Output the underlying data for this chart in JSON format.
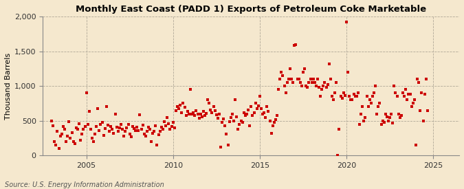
{
  "title": "Monthly East Coast (PADD 1) Exports of Petroleum Coke Marketable",
  "ylabel": "Thousand Barrels",
  "source": "Source: U.S. Energy Information Administration",
  "background_color": "#f5e8ce",
  "plot_background_color": "#f5e8ce",
  "marker_color": "#cc0000",
  "marker_size": 6,
  "xlim_start": 2002.5,
  "xlim_end": 2026.5,
  "ylim": [
    0,
    2000
  ],
  "yticks": [
    0,
    500,
    1000,
    1500,
    2000
  ],
  "xticks": [
    2005,
    2010,
    2015,
    2020,
    2025
  ],
  "data": [
    [
      2003.0,
      500
    ],
    [
      2003.08,
      430
    ],
    [
      2003.17,
      200
    ],
    [
      2003.25,
      150
    ],
    [
      2003.33,
      350
    ],
    [
      2003.42,
      100
    ],
    [
      2003.5,
      280
    ],
    [
      2003.58,
      310
    ],
    [
      2003.67,
      420
    ],
    [
      2003.75,
      380
    ],
    [
      2003.83,
      200
    ],
    [
      2003.92,
      280
    ],
    [
      2004.0,
      490
    ],
    [
      2004.08,
      250
    ],
    [
      2004.17,
      330
    ],
    [
      2004.25,
      200
    ],
    [
      2004.33,
      170
    ],
    [
      2004.42,
      400
    ],
    [
      2004.5,
      380
    ],
    [
      2004.58,
      460
    ],
    [
      2004.67,
      220
    ],
    [
      2004.75,
      310
    ],
    [
      2004.83,
      380
    ],
    [
      2004.92,
      420
    ],
    [
      2005.0,
      900
    ],
    [
      2005.08,
      450
    ],
    [
      2005.17,
      640
    ],
    [
      2005.25,
      380
    ],
    [
      2005.33,
      250
    ],
    [
      2005.42,
      200
    ],
    [
      2005.5,
      310
    ],
    [
      2005.58,
      420
    ],
    [
      2005.67,
      680
    ],
    [
      2005.75,
      360
    ],
    [
      2005.83,
      450
    ],
    [
      2005.92,
      480
    ],
    [
      2006.0,
      290
    ],
    [
      2006.08,
      390
    ],
    [
      2006.17,
      700
    ],
    [
      2006.25,
      440
    ],
    [
      2006.33,
      350
    ],
    [
      2006.42,
      420
    ],
    [
      2006.5,
      380
    ],
    [
      2006.58,
      320
    ],
    [
      2006.67,
      600
    ],
    [
      2006.75,
      410
    ],
    [
      2006.83,
      350
    ],
    [
      2006.92,
      400
    ],
    [
      2007.0,
      450
    ],
    [
      2007.08,
      380
    ],
    [
      2007.17,
      280
    ],
    [
      2007.25,
      350
    ],
    [
      2007.33,
      400
    ],
    [
      2007.42,
      450
    ],
    [
      2007.5,
      310
    ],
    [
      2007.58,
      270
    ],
    [
      2007.67,
      420
    ],
    [
      2007.75,
      390
    ],
    [
      2007.83,
      360
    ],
    [
      2007.92,
      410
    ],
    [
      2008.0,
      360
    ],
    [
      2008.08,
      590
    ],
    [
      2008.17,
      380
    ],
    [
      2008.25,
      440
    ],
    [
      2008.33,
      310
    ],
    [
      2008.42,
      280
    ],
    [
      2008.5,
      350
    ],
    [
      2008.58,
      410
    ],
    [
      2008.67,
      380
    ],
    [
      2008.75,
      200
    ],
    [
      2008.83,
      320
    ],
    [
      2008.92,
      350
    ],
    [
      2009.0,
      430
    ],
    [
      2009.08,
      150
    ],
    [
      2009.17,
      300
    ],
    [
      2009.25,
      350
    ],
    [
      2009.33,
      410
    ],
    [
      2009.42,
      380
    ],
    [
      2009.5,
      490
    ],
    [
      2009.58,
      430
    ],
    [
      2009.67,
      550
    ],
    [
      2009.75,
      460
    ],
    [
      2009.83,
      380
    ],
    [
      2009.92,
      420
    ],
    [
      2010.0,
      480
    ],
    [
      2010.08,
      400
    ],
    [
      2010.17,
      650
    ],
    [
      2010.25,
      700
    ],
    [
      2010.33,
      680
    ],
    [
      2010.42,
      720
    ],
    [
      2010.5,
      620
    ],
    [
      2010.58,
      750
    ],
    [
      2010.67,
      690
    ],
    [
      2010.75,
      580
    ],
    [
      2010.83,
      640
    ],
    [
      2010.92,
      600
    ],
    [
      2011.0,
      950
    ],
    [
      2011.08,
      600
    ],
    [
      2011.17,
      620
    ],
    [
      2011.25,
      580
    ],
    [
      2011.33,
      650
    ],
    [
      2011.42,
      600
    ],
    [
      2011.5,
      540
    ],
    [
      2011.58,
      600
    ],
    [
      2011.67,
      560
    ],
    [
      2011.75,
      640
    ],
    [
      2011.83,
      580
    ],
    [
      2011.92,
      610
    ],
    [
      2012.0,
      800
    ],
    [
      2012.08,
      750
    ],
    [
      2012.17,
      660
    ],
    [
      2012.25,
      620
    ],
    [
      2012.33,
      700
    ],
    [
      2012.42,
      650
    ],
    [
      2012.5,
      590
    ],
    [
      2012.58,
      540
    ],
    [
      2012.67,
      600
    ],
    [
      2012.75,
      120
    ],
    [
      2012.83,
      480
    ],
    [
      2012.92,
      530
    ],
    [
      2013.0,
      430
    ],
    [
      2013.08,
      310
    ],
    [
      2013.17,
      150
    ],
    [
      2013.25,
      490
    ],
    [
      2013.33,
      550
    ],
    [
      2013.42,
      600
    ],
    [
      2013.5,
      500
    ],
    [
      2013.58,
      800
    ],
    [
      2013.67,
      560
    ],
    [
      2013.75,
      380
    ],
    [
      2013.83,
      450
    ],
    [
      2013.92,
      500
    ],
    [
      2014.0,
      480
    ],
    [
      2014.08,
      620
    ],
    [
      2014.17,
      580
    ],
    [
      2014.25,
      600
    ],
    [
      2014.33,
      660
    ],
    [
      2014.42,
      430
    ],
    [
      2014.5,
      700
    ],
    [
      2014.58,
      580
    ],
    [
      2014.67,
      620
    ],
    [
      2014.75,
      750
    ],
    [
      2014.83,
      680
    ],
    [
      2014.92,
      710
    ],
    [
      2015.0,
      850
    ],
    [
      2015.08,
      680
    ],
    [
      2015.17,
      600
    ],
    [
      2015.25,
      620
    ],
    [
      2015.33,
      550
    ],
    [
      2015.42,
      700
    ],
    [
      2015.5,
      640
    ],
    [
      2015.58,
      500
    ],
    [
      2015.67,
      320
    ],
    [
      2015.75,
      430
    ],
    [
      2015.83,
      480
    ],
    [
      2015.92,
      520
    ],
    [
      2016.0,
      580
    ],
    [
      2016.08,
      950
    ],
    [
      2016.17,
      1100
    ],
    [
      2016.25,
      1200
    ],
    [
      2016.33,
      1150
    ],
    [
      2016.42,
      1000
    ],
    [
      2016.5,
      900
    ],
    [
      2016.58,
      1050
    ],
    [
      2016.67,
      1100
    ],
    [
      2016.75,
      1250
    ],
    [
      2016.83,
      1100
    ],
    [
      2016.92,
      1050
    ],
    [
      2017.0,
      1580
    ],
    [
      2017.08,
      1590
    ],
    [
      2017.17,
      1100
    ],
    [
      2017.25,
      1100
    ],
    [
      2017.33,
      1050
    ],
    [
      2017.42,
      1000
    ],
    [
      2017.5,
      1200
    ],
    [
      2017.58,
      1250
    ],
    [
      2017.67,
      1000
    ],
    [
      2017.75,
      980
    ],
    [
      2017.83,
      1050
    ],
    [
      2017.92,
      1100
    ],
    [
      2018.0,
      1050
    ],
    [
      2018.08,
      1100
    ],
    [
      2018.17,
      1050
    ],
    [
      2018.25,
      1000
    ],
    [
      2018.33,
      1100
    ],
    [
      2018.42,
      980
    ],
    [
      2018.5,
      850
    ],
    [
      2018.58,
      950
    ],
    [
      2018.67,
      1000
    ],
    [
      2018.75,
      1050
    ],
    [
      2018.83,
      980
    ],
    [
      2018.92,
      1020
    ],
    [
      2019.0,
      1320
    ],
    [
      2019.08,
      1100
    ],
    [
      2019.17,
      850
    ],
    [
      2019.25,
      800
    ],
    [
      2019.33,
      900
    ],
    [
      2019.42,
      1050
    ],
    [
      2019.5,
      0
    ],
    [
      2019.58,
      380
    ],
    [
      2019.67,
      850
    ],
    [
      2019.75,
      820
    ],
    [
      2019.83,
      900
    ],
    [
      2019.92,
      860
    ],
    [
      2020.0,
      1920
    ],
    [
      2020.08,
      1200
    ],
    [
      2020.17,
      850
    ],
    [
      2020.25,
      800
    ],
    [
      2020.33,
      800
    ],
    [
      2020.42,
      880
    ],
    [
      2020.5,
      850
    ],
    [
      2020.58,
      850
    ],
    [
      2020.67,
      900
    ],
    [
      2020.75,
      450
    ],
    [
      2020.83,
      600
    ],
    [
      2020.92,
      700
    ],
    [
      2021.0,
      500
    ],
    [
      2021.08,
      550
    ],
    [
      2021.17,
      850
    ],
    [
      2021.25,
      700
    ],
    [
      2021.33,
      800
    ],
    [
      2021.42,
      750
    ],
    [
      2021.5,
      850
    ],
    [
      2021.58,
      900
    ],
    [
      2021.67,
      1000
    ],
    [
      2021.75,
      600
    ],
    [
      2021.83,
      700
    ],
    [
      2021.92,
      750
    ],
    [
      2022.0,
      450
    ],
    [
      2022.08,
      500
    ],
    [
      2022.17,
      480
    ],
    [
      2022.25,
      600
    ],
    [
      2022.33,
      560
    ],
    [
      2022.42,
      500
    ],
    [
      2022.5,
      550
    ],
    [
      2022.58,
      600
    ],
    [
      2022.67,
      470
    ],
    [
      2022.75,
      1000
    ],
    [
      2022.83,
      900
    ],
    [
      2022.92,
      850
    ],
    [
      2023.0,
      600
    ],
    [
      2023.08,
      550
    ],
    [
      2023.17,
      580
    ],
    [
      2023.25,
      900
    ],
    [
      2023.33,
      850
    ],
    [
      2023.42,
      950
    ],
    [
      2023.5,
      800
    ],
    [
      2023.58,
      880
    ],
    [
      2023.67,
      880
    ],
    [
      2023.75,
      700
    ],
    [
      2023.83,
      750
    ],
    [
      2023.92,
      800
    ],
    [
      2024.0,
      150
    ],
    [
      2024.08,
      1100
    ],
    [
      2024.17,
      1050
    ],
    [
      2024.25,
      650
    ],
    [
      2024.33,
      900
    ],
    [
      2024.42,
      500
    ],
    [
      2024.5,
      880
    ],
    [
      2024.58,
      1100
    ],
    [
      2024.67,
      650
    ]
  ]
}
